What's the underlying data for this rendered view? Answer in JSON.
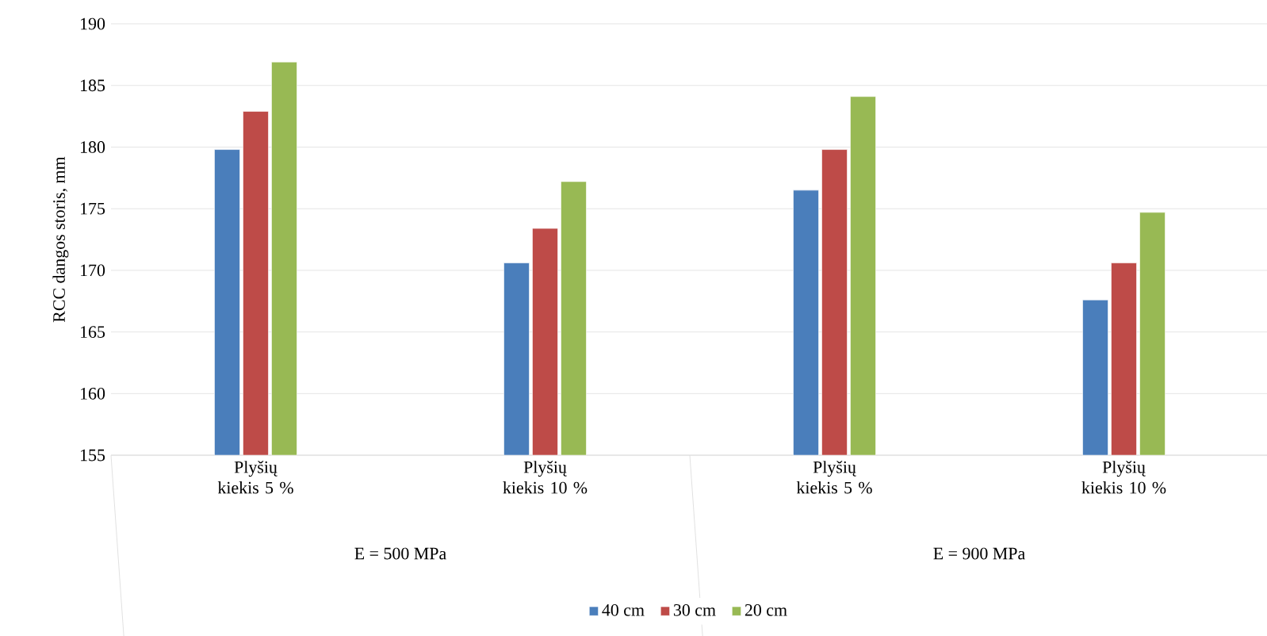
{
  "chart_data": {
    "type": "bar",
    "ylabel": "RCC dangos storis, mm",
    "categories": [
      "Plyšių kiekis 5 %",
      "Plyšių kiekis 10 %",
      "Plyšių kiekis 5 %",
      "Plyšių kiekis 10 %"
    ],
    "series": [
      {
        "name": "40 cm",
        "color": "#4a7ebb",
        "values": [
          179.8,
          170.6,
          176.5,
          167.6
        ]
      },
      {
        "name": "30 cm",
        "color": "#be4b48",
        "values": [
          182.9,
          173.4,
          179.8,
          170.6
        ]
      },
      {
        "name": "20 cm",
        "color": "#98b954",
        "values": [
          186.9,
          177.2,
          184.1,
          174.7
        ]
      }
    ],
    "annotations": [
      "E = 500 MPa",
      "E = 900 MPa"
    ],
    "ylim": [
      155,
      190
    ],
    "yticks": [
      155,
      160,
      165,
      170,
      175,
      180,
      185,
      190
    ],
    "grid": "y",
    "legend": "bottom"
  }
}
